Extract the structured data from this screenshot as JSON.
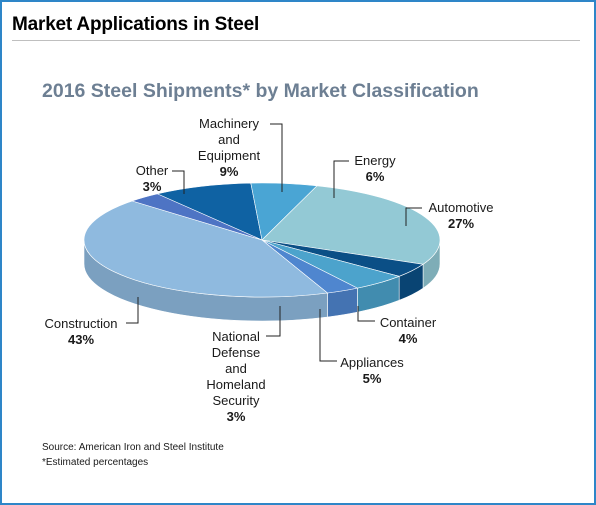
{
  "page": {
    "title": "Market Applications in Steel",
    "source": "Source: American Iron and Steel Institute",
    "note": "*Estimated percentages"
  },
  "chart_data": {
    "type": "pie",
    "title": "2016 Steel Shipments* by Market Classification",
    "unit": "%",
    "slices": [
      {
        "label_lines": [
          "Machinery",
          "and",
          "Equipment"
        ],
        "value": 9,
        "value_label": "9%",
        "color": "#0f62a3"
      },
      {
        "label_lines": [
          "Energy"
        ],
        "value": 6,
        "value_label": "6%",
        "color": "#4aa5d4"
      },
      {
        "label_lines": [
          "Automotive"
        ],
        "value": 27,
        "value_label": "27%",
        "color": "#93c9d5"
      },
      {
        "label_lines": [
          "Container"
        ],
        "value": 4,
        "value_label": "4%",
        "color": "#0b4f86"
      },
      {
        "label_lines": [
          "Appliances"
        ],
        "value": 5,
        "value_label": "5%",
        "color": "#4ca3cc"
      },
      {
        "label_lines": [
          "National",
          "Defense",
          "and",
          "Homeland",
          "Security"
        ],
        "value": 3,
        "value_label": "3%",
        "color": "#4f86cf"
      },
      {
        "label_lines": [
          "Construction"
        ],
        "value": 43,
        "value_label": "43%",
        "color": "#8fbadf"
      },
      {
        "label_lines": [
          "Other"
        ],
        "value": 3,
        "value_label": "3%",
        "color": "#4e74c4"
      }
    ]
  }
}
